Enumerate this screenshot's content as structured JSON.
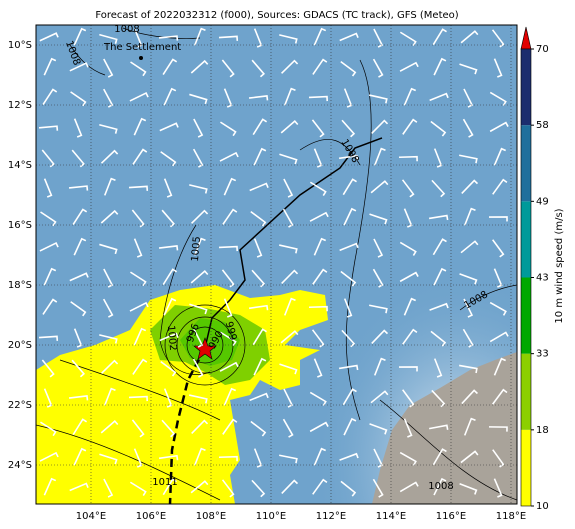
{
  "title": "Forecast of 2022032312 (f000), Sources: GDACS (TC track), GFS (Meteo)",
  "lat_labels": [
    "10°S",
    "12°S",
    "14°S",
    "16°S",
    "18°S",
    "20°S",
    "22°S",
    "24°S"
  ],
  "lon_labels": [
    "104°E",
    "106°E",
    "108°E",
    "110°E",
    "112°E",
    "114°E",
    "116°E",
    "118°E"
  ],
  "place": "The Settlement",
  "isobar_labels": [
    "1008",
    "1008",
    "1008",
    "1005",
    "1002",
    "999",
    "996",
    "990",
    "1008",
    "1008",
    "1011"
  ],
  "colorbar": {
    "label": "10 m wind speed (m/s)",
    "ticks": [
      10,
      18,
      33,
      43,
      49,
      58,
      70
    ],
    "colors": [
      "#ffff00",
      "#8ccf00",
      "#00a800",
      "#009a9a",
      "#1f6f9c",
      "#1c2d6e"
    ],
    "extend_color": "#e00000"
  }
}
